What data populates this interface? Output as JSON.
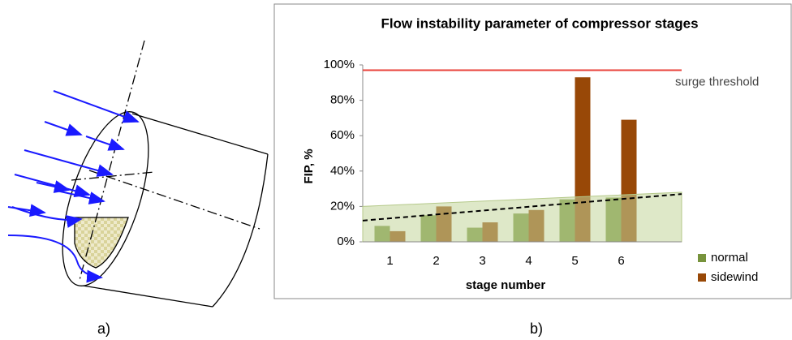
{
  "panel_labels": [
    "a)",
    "b)"
  ],
  "chart_data": {
    "type": "bar",
    "title": "Flow instability parameter of compressor stages",
    "x_label": "stage number",
    "y_label": "FIP, %",
    "categories": [
      "1",
      "2",
      "3",
      "4",
      "5",
      "6"
    ],
    "series": [
      {
        "name": "normal",
        "color": "#77933c",
        "values": [
          9,
          15,
          8,
          16,
          24,
          25
        ]
      },
      {
        "name": "sidewind",
        "color": "#984807",
        "values": [
          6,
          20,
          11,
          18,
          93,
          69
        ]
      }
    ],
    "threshold": {
      "label": "surge threshold",
      "value": 97,
      "color": "#e8403a"
    },
    "trendline": [
      12,
      27
    ],
    "stable_zone": [
      20,
      28
    ],
    "ylim": [
      0,
      100
    ],
    "yticks": [
      {
        "value": 0,
        "label": "0%"
      },
      {
        "value": 20,
        "label": "20%"
      },
      {
        "value": 40,
        "label": "40%"
      },
      {
        "value": 60,
        "label": "60%"
      },
      {
        "value": 80,
        "label": "80%"
      },
      {
        "value": 100,
        "label": "100%"
      }
    ],
    "legend": "bottom-right"
  }
}
